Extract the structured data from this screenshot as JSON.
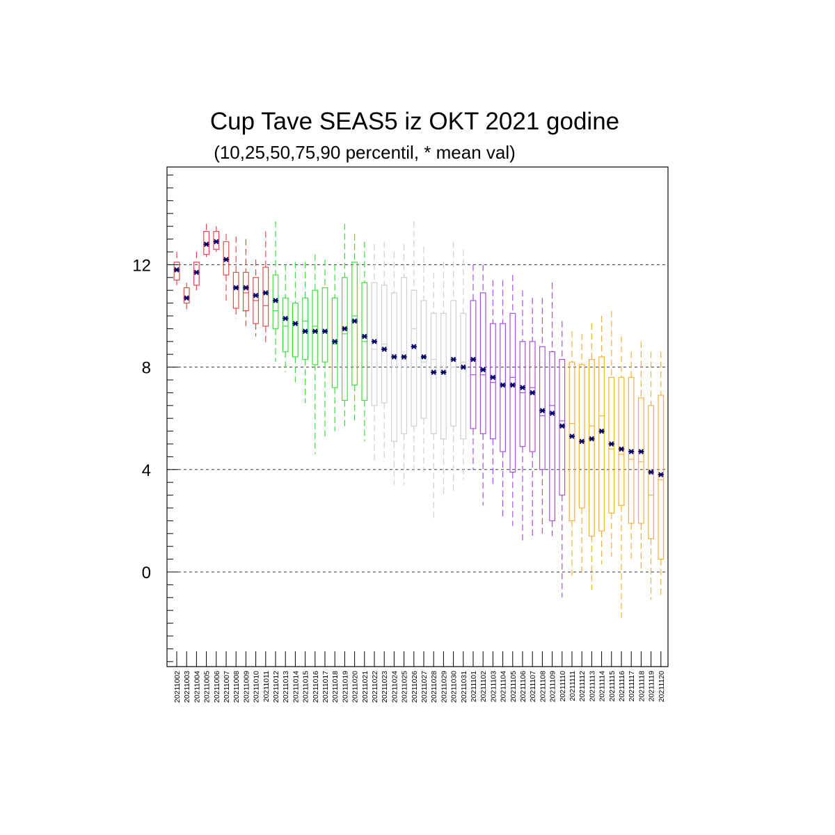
{
  "chart_data": {
    "type": "boxplot",
    "title": "Cup Tave SEAS5 iz OKT 2021 godine",
    "subtitle": "(10,25,50,75,90 percentil, * mean val)",
    "ylim": [
      -3.3,
      15.3
    ],
    "yticks": [
      0,
      4,
      8,
      12
    ],
    "grid_y": [
      0,
      4,
      8,
      12
    ],
    "colors": {
      "red": "#e8474c",
      "green": "#3ee03e",
      "grey": "#cfcfcf",
      "purple": "#a64fe0",
      "orange": "#f4b13a",
      "mean": "#000066"
    },
    "categories": [
      "20211002",
      "20211003",
      "20211004",
      "20211005",
      "20211006",
      "20211007",
      "20211008",
      "20211009",
      "20211010",
      "20211011",
      "20211012",
      "20211013",
      "20211014",
      "20211015",
      "20211016",
      "20211017",
      "20211018",
      "20211019",
      "20211020",
      "20211021",
      "20211022",
      "20211023",
      "20211024",
      "20211025",
      "20211026",
      "20211027",
      "20211028",
      "20211029",
      "20211030",
      "20211031",
      "20211101",
      "20211102",
      "20211103",
      "20211104",
      "20211105",
      "20211106",
      "20211107",
      "20211108",
      "20211109",
      "20211110",
      "20211111",
      "20211112",
      "20211113",
      "20211114",
      "20211115",
      "20211116",
      "20211117",
      "20211118",
      "20211119",
      "20211120"
    ],
    "p10": [
      11.2,
      10.2,
      11.0,
      12.3,
      12.5,
      10.5,
      9.9,
      9.6,
      9.2,
      8.9,
      8.2,
      7.8,
      7.4,
      6.6,
      4.6,
      5.2,
      5.5,
      5.6,
      5.8,
      5.1,
      4.3,
      4.3,
      3.4,
      3.4,
      3.8,
      3.9,
      2.0,
      2.9,
      3.1,
      3.6,
      4.0,
      2.6,
      3.3,
      2.1,
      1.8,
      1.1,
      1.4,
      1.5,
      1.4,
      -1.0,
      -0.2,
      0.0,
      -0.7,
      0.3,
      0.6,
      -1.8,
      0.4,
      0.0,
      -1.1,
      -0.9
    ],
    "p25": [
      11.4,
      10.5,
      11.2,
      12.4,
      12.6,
      11.6,
      10.3,
      10.2,
      9.7,
      9.6,
      9.5,
      8.6,
      8.4,
      8.3,
      8.1,
      8.2,
      7.2,
      6.7,
      7.3,
      6.7,
      6.5,
      6.6,
      5.1,
      5.4,
      5.7,
      6.0,
      5.4,
      5.2,
      5.7,
      5.2,
      5.6,
      5.4,
      5.2,
      4.7,
      3.9,
      4.9,
      4.7,
      4.0,
      2.0,
      3.0,
      2.0,
      2.5,
      1.4,
      1.6,
      2.3,
      2.6,
      1.9,
      1.9,
      1.3,
      0.5
    ],
    "p50": [
      11.8,
      10.7,
      11.7,
      12.8,
      12.9,
      12.2,
      11.1,
      10.9,
      10.6,
      10.4,
      10.2,
      9.6,
      9.7,
      9.8,
      9.6,
      9.4,
      8.9,
      9.3,
      10.0,
      9.0,
      8.7,
      8.9,
      8.5,
      8.3,
      9.5,
      8.2,
      8.3,
      7.8,
      8.0,
      8.2,
      7.7,
      7.7,
      7.4,
      7.3,
      7.6,
      7.0,
      7.2,
      6.1,
      6.5,
      5.9,
      5.8,
      5.1,
      5.7,
      6.1,
      4.8,
      4.6,
      4.4,
      4.3,
      3.0,
      3.6
    ],
    "p75": [
      12.1,
      11.1,
      12.1,
      13.3,
      13.3,
      12.9,
      11.7,
      11.7,
      11.5,
      11.9,
      11.6,
      10.7,
      10.5,
      10.7,
      11.0,
      11.1,
      10.7,
      11.5,
      12.1,
      11.3,
      11.3,
      11.2,
      10.9,
      11.5,
      11.0,
      10.6,
      10.1,
      10.1,
      10.6,
      10.1,
      10.6,
      10.9,
      9.7,
      9.7,
      10.1,
      9.0,
      9.0,
      8.8,
      8.6,
      8.3,
      8.2,
      8.1,
      8.3,
      8.4,
      7.6,
      7.6,
      7.6,
      6.8,
      6.5,
      6.9
    ],
    "p90": [
      12.5,
      11.3,
      12.5,
      13.6,
      13.5,
      13.2,
      13.1,
      13.0,
      12.2,
      13.3,
      13.7,
      12.0,
      12.1,
      12.1,
      12.4,
      12.2,
      12.0,
      13.6,
      13.2,
      12.9,
      12.8,
      12.9,
      12.5,
      12.8,
      13.7,
      12.7,
      11.7,
      12.1,
      12.9,
      12.6,
      12.0,
      12.0,
      11.4,
      11.4,
      11.6,
      11.0,
      10.7,
      10.7,
      11.3,
      9.8,
      9.4,
      9.3,
      9.7,
      10.0,
      10.2,
      9.2,
      8.6,
      9.0,
      8.6,
      8.6
    ],
    "mean": [
      11.8,
      10.7,
      11.7,
      12.8,
      12.9,
      12.2,
      11.1,
      11.1,
      10.8,
      10.9,
      10.6,
      9.9,
      9.7,
      9.4,
      9.4,
      9.4,
      9.0,
      9.5,
      9.8,
      9.2,
      9.0,
      8.7,
      8.4,
      8.4,
      8.8,
      8.4,
      7.8,
      7.8,
      8.3,
      8.0,
      8.3,
      7.9,
      7.6,
      7.3,
      7.3,
      7.2,
      7.0,
      6.3,
      6.2,
      5.7,
      5.3,
      5.1,
      5.2,
      5.5,
      5.0,
      4.8,
      4.7,
      4.7,
      3.9,
      3.8
    ],
    "color_groups": [
      "red",
      "red",
      "red",
      "red",
      "red",
      "red",
      "red",
      "red",
      "red",
      "red",
      "green",
      "green",
      "green",
      "green",
      "green",
      "green",
      "green",
      "green",
      "green",
      "green",
      "grey",
      "grey",
      "grey",
      "grey",
      "grey",
      "grey",
      "grey",
      "grey",
      "grey",
      "grey",
      "purple",
      "purple",
      "purple",
      "purple",
      "purple",
      "purple",
      "purple",
      "purple",
      "purple",
      "purple",
      "orange",
      "orange",
      "orange",
      "orange",
      "orange",
      "orange",
      "orange",
      "orange",
      "orange",
      "orange"
    ]
  }
}
